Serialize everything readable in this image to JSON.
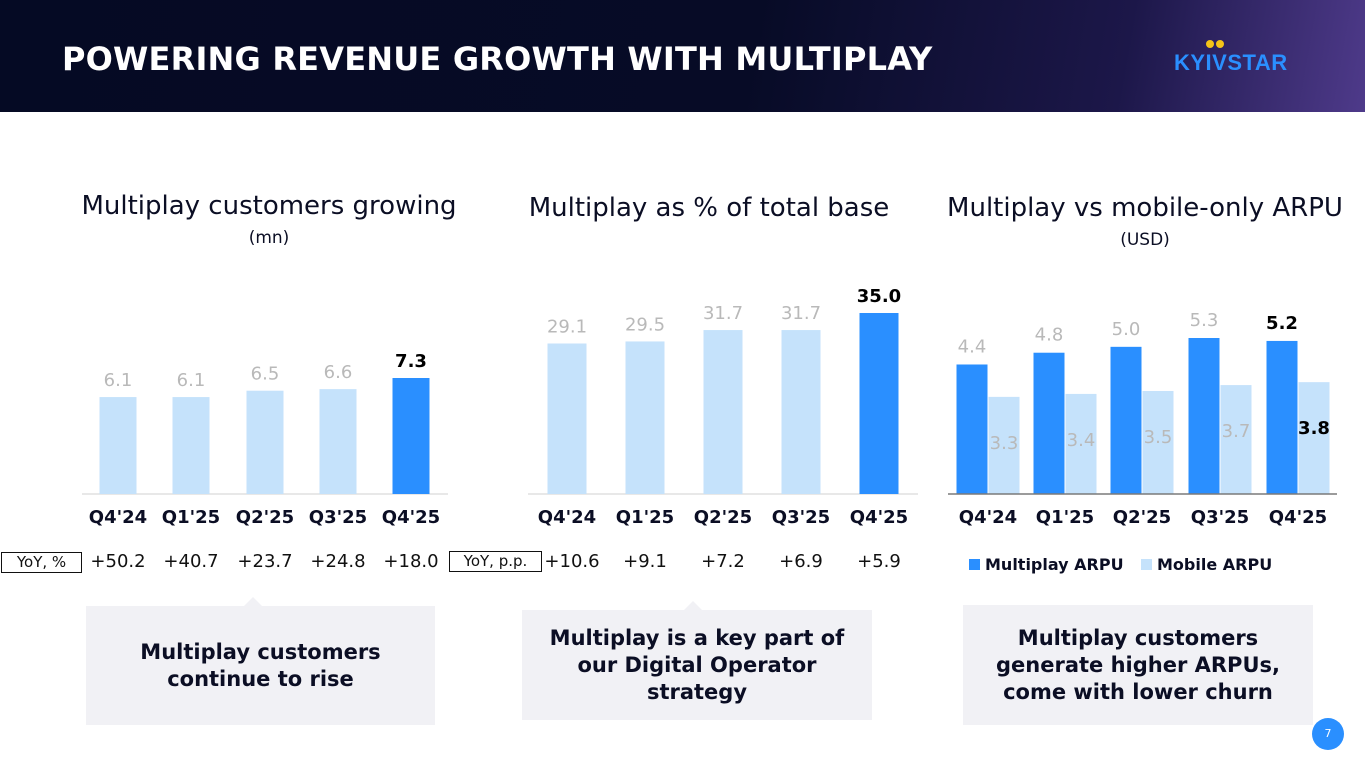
{
  "header": {
    "title": "POWERING REVENUE GROWTH WITH MULTIPLAY",
    "logo": "KYIVSTAR"
  },
  "colors": {
    "accent": "#2a8fff",
    "light": "#c5e2fb",
    "label_light": "#b9b9b9",
    "text": "#0b0e24"
  },
  "panels": {
    "customers": {
      "title": "Multiplay customers growing",
      "subtitle": "(mn)"
    },
    "share": {
      "title": "Multiplay as % of total base"
    },
    "arpu": {
      "title": "Multiplay vs mobile-only ARPU",
      "subtitle": "(USD)"
    }
  },
  "chart_data": [
    {
      "type": "bar",
      "title": "Multiplay customers growing",
      "unit": "mn",
      "categories": [
        "Q4'24",
        "Q1'25",
        "Q2'25",
        "Q3'25",
        "Q4'25"
      ],
      "values": [
        6.1,
        6.1,
        6.5,
        6.6,
        7.3
      ],
      "value_labels": [
        "6.1",
        "6.1",
        "6.5",
        "6.6",
        "7.3"
      ],
      "highlight_index": 4,
      "ylim": [
        0,
        7.3
      ]
    },
    {
      "type": "bar",
      "title": "Multiplay as % of total base",
      "categories": [
        "Q4'24",
        "Q1'25",
        "Q2'25",
        "Q3'25",
        "Q4'25"
      ],
      "values": [
        29.1,
        29.5,
        31.7,
        31.7,
        35.0
      ],
      "value_labels": [
        "29.1",
        "29.5",
        "31.7",
        "31.7",
        "35.0"
      ],
      "highlight_index": 4,
      "ylim": [
        0,
        35.0
      ]
    },
    {
      "type": "bar",
      "title": "Multiplay vs mobile-only ARPU",
      "unit": "USD",
      "categories": [
        "Q4'24",
        "Q1'25",
        "Q2'25",
        "Q3'25",
        "Q4'25"
      ],
      "series": [
        {
          "name": "Multiplay ARPU",
          "values": [
            4.4,
            4.8,
            5.0,
            5.3,
            5.2
          ],
          "value_labels": [
            "4.4",
            "4.8",
            "5.0",
            "5.3",
            "5.2"
          ]
        },
        {
          "name": "Mobile ARPU",
          "values": [
            3.3,
            3.4,
            3.5,
            3.7,
            3.8
          ],
          "value_labels": [
            "3.3",
            "3.4",
            "3.5",
            "3.7",
            "3.8"
          ]
        }
      ],
      "highlight_index": 4,
      "ylim": [
        0,
        5.3
      ],
      "legend": "bottom"
    }
  ],
  "yoy": {
    "customers": {
      "label": "YoY, %",
      "values": [
        "+50.2",
        "+40.7",
        "+23.7",
        "+24.8",
        "+18.0"
      ]
    },
    "share": {
      "label": "YoY, p.p.",
      "values": [
        "+10.6",
        "+9.1",
        "+7.2",
        "+6.9",
        "+5.9"
      ]
    }
  },
  "legend": {
    "multiplay": "Multiplay ARPU",
    "mobile": "Mobile ARPU"
  },
  "callouts": {
    "customers": [
      "Multiplay customers",
      "continue to rise"
    ],
    "share": [
      "Multiplay is a key part of",
      "our Digital Operator",
      "strategy"
    ],
    "arpu": [
      "Multiplay customers",
      "generate higher ARPUs,",
      "come with lower churn"
    ]
  },
  "page_number": "7"
}
